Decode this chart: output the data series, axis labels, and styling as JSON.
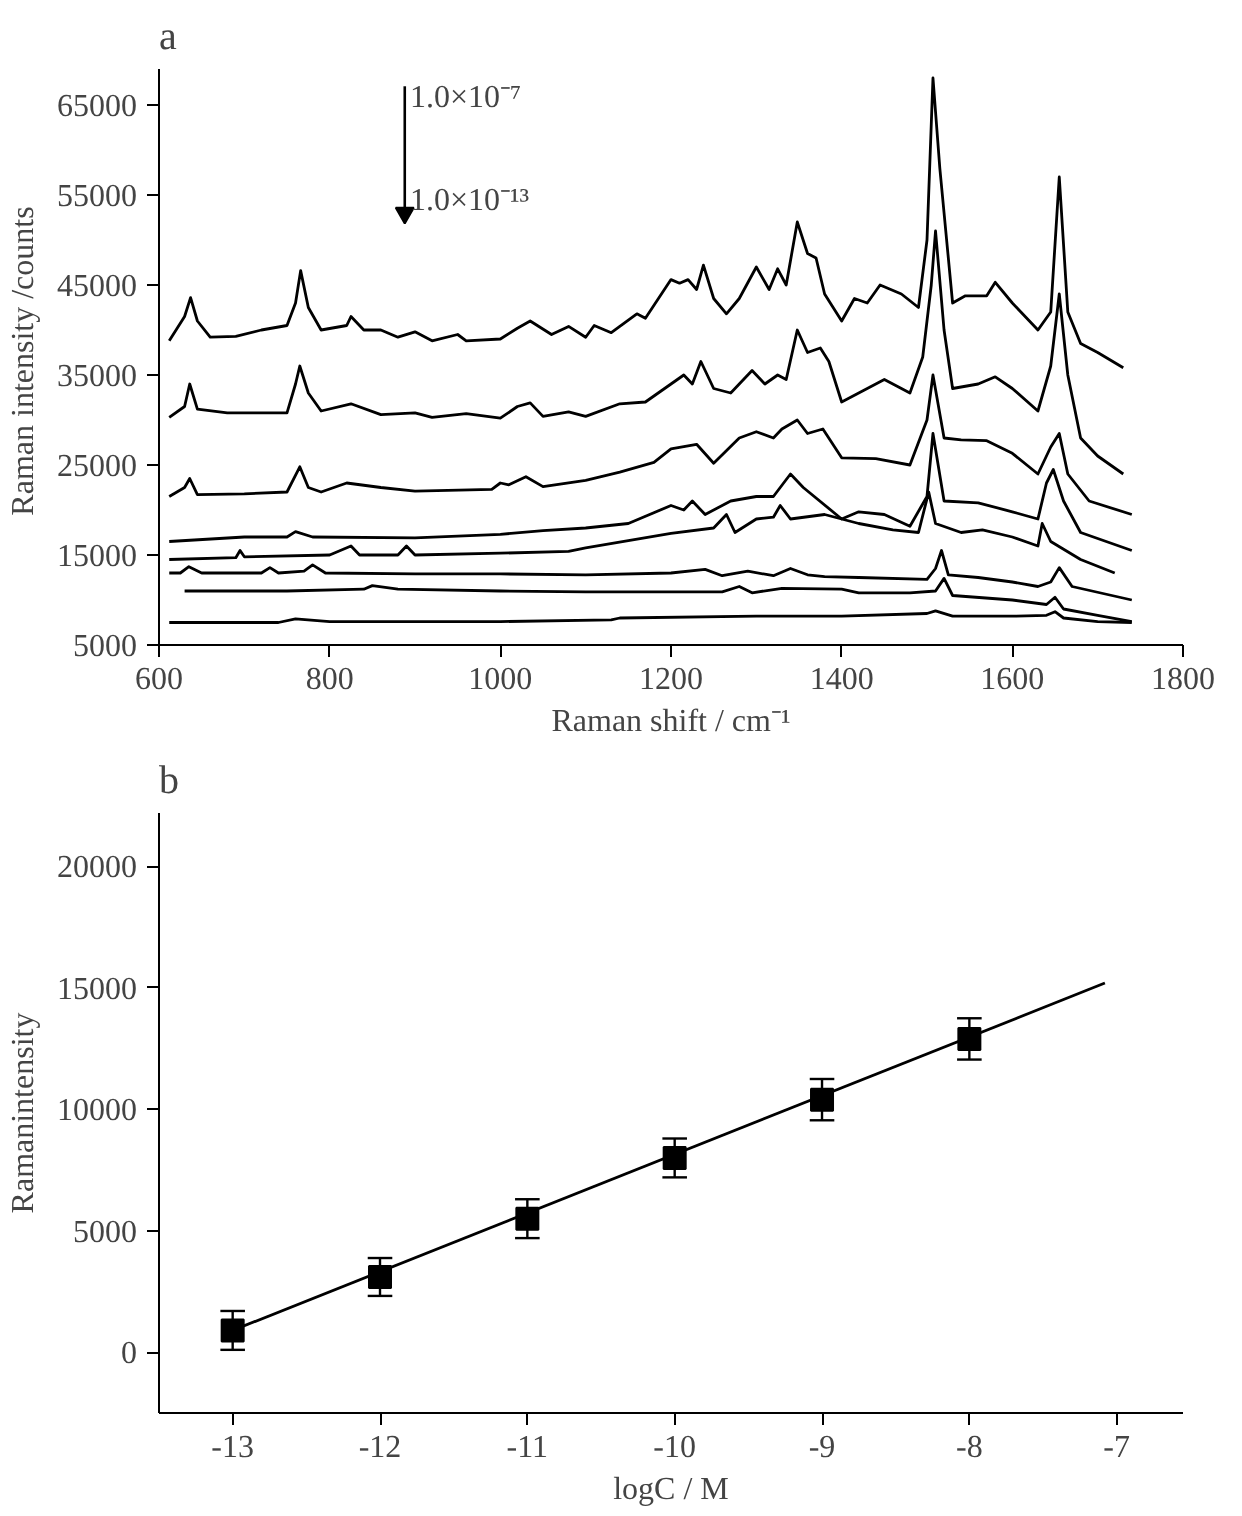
{
  "chart_data": [
    {
      "type": "line",
      "title": "a",
      "xlabel": "Raman shift / cm⁻¹",
      "ylabel": "Raman intensity  /counts",
      "xlim": [
        600,
        1800
      ],
      "xticks": [
        600,
        800,
        1000,
        1200,
        1400,
        1600,
        1800
      ],
      "ylim": [
        5000,
        69000
      ],
      "yticks": [
        5000,
        15000,
        25000,
        35000,
        45000,
        55000,
        65000
      ],
      "grid": false,
      "marker": "none",
      "line_style": "solid",
      "annotations": [
        "1.0×10⁻⁷",
        "1.0×10⁻¹³"
      ],
      "series": [
        {
          "color": "#000000",
          "x": [
            612,
            630,
            637,
            645,
            660,
            690,
            720,
            750,
            760,
            766,
            775,
            790,
            820,
            825,
            840,
            860,
            880,
            900,
            920,
            950,
            960,
            1000,
            1020,
            1035,
            1060,
            1080,
            1100,
            1110,
            1130,
            1160,
            1170,
            1200,
            1210,
            1220,
            1230,
            1238,
            1250,
            1265,
            1280,
            1300,
            1315,
            1325,
            1335,
            1348,
            1360,
            1370,
            1380,
            1400,
            1415,
            1430,
            1445,
            1470,
            1490,
            1500,
            1507,
            1515,
            1530,
            1545,
            1570,
            1580,
            1600,
            1610,
            1630,
            1645,
            1655,
            1665,
            1680,
            1700,
            1730
          ],
          "values": [
            38800,
            41500,
            43600,
            41000,
            39200,
            39300,
            40000,
            40500,
            43000,
            46600,
            42500,
            40000,
            40500,
            41500,
            40000,
            40000,
            39200,
            39800,
            38800,
            39500,
            38800,
            39000,
            40200,
            41000,
            39500,
            40400,
            39200,
            40500,
            39700,
            41800,
            41300,
            45600,
            45200,
            45600,
            44500,
            47200,
            43500,
            41800,
            43500,
            47000,
            44500,
            46800,
            45000,
            52000,
            48500,
            48000,
            44000,
            41000,
            43500,
            43000,
            45000,
            44000,
            42500,
            50000,
            68000,
            58000,
            43000,
            43800,
            43800,
            45300,
            43000,
            42000,
            40000,
            42000,
            57000,
            42000,
            38500,
            37500,
            35800
          ]
        },
        {
          "color": "#000000",
          "x": [
            612,
            630,
            636,
            645,
            680,
            750,
            760,
            765,
            775,
            790,
            825,
            860,
            900,
            920,
            960,
            1000,
            1020,
            1035,
            1050,
            1080,
            1100,
            1140,
            1170,
            1200,
            1215,
            1225,
            1235,
            1250,
            1270,
            1295,
            1310,
            1325,
            1335,
            1348,
            1360,
            1375,
            1385,
            1400,
            1420,
            1450,
            1480,
            1495,
            1505,
            1510,
            1520,
            1530,
            1560,
            1580,
            1600,
            1630,
            1645,
            1655,
            1665,
            1680,
            1700,
            1730
          ],
          "values": [
            30300,
            31500,
            34000,
            31200,
            30800,
            30800,
            34000,
            36000,
            33000,
            31000,
            31800,
            30600,
            30800,
            30300,
            30700,
            30200,
            31500,
            31900,
            30400,
            30900,
            30400,
            31800,
            32000,
            34000,
            35000,
            34000,
            36500,
            33500,
            33000,
            35500,
            34000,
            35000,
            34500,
            40000,
            37500,
            38000,
            36500,
            32000,
            33000,
            34500,
            33000,
            37000,
            45000,
            51000,
            40000,
            33500,
            34000,
            34800,
            33500,
            31000,
            36000,
            44000,
            35000,
            28000,
            26000,
            24000
          ]
        },
        {
          "color": "#000000",
          "x": [
            612,
            630,
            636,
            645,
            700,
            750,
            765,
            775,
            790,
            820,
            860,
            900,
            990,
            1000,
            1010,
            1030,
            1050,
            1100,
            1140,
            1180,
            1200,
            1230,
            1250,
            1280,
            1300,
            1320,
            1330,
            1348,
            1360,
            1378,
            1400,
            1440,
            1480,
            1500,
            1507,
            1520,
            1540,
            1570,
            1600,
            1630,
            1645,
            1655,
            1665,
            1690,
            1740
          ],
          "values": [
            21500,
            22500,
            23500,
            21700,
            21800,
            22000,
            24800,
            22500,
            22000,
            23000,
            22500,
            22100,
            22300,
            23000,
            22800,
            23700,
            22600,
            23300,
            24200,
            25300,
            26800,
            27300,
            25200,
            28000,
            28700,
            28000,
            29000,
            30000,
            28500,
            29000,
            25800,
            25700,
            25000,
            30000,
            35000,
            28000,
            27800,
            27700,
            26300,
            24000,
            27000,
            28500,
            24000,
            21000,
            19500
          ]
        },
        {
          "color": "#000000",
          "x": [
            612,
            700,
            750,
            760,
            780,
            900,
            1000,
            1050,
            1100,
            1150,
            1200,
            1215,
            1225,
            1240,
            1270,
            1300,
            1320,
            1340,
            1355,
            1400,
            1420,
            1450,
            1480,
            1500,
            1507,
            1520,
            1560,
            1600,
            1630,
            1640,
            1648,
            1660,
            1680,
            1740
          ],
          "values": [
            16500,
            17000,
            17000,
            17600,
            17000,
            16900,
            17300,
            17700,
            18000,
            18500,
            20500,
            20000,
            21000,
            19500,
            21000,
            21500,
            21500,
            24000,
            22500,
            19000,
            19800,
            19500,
            18200,
            21500,
            28500,
            21000,
            20800,
            19800,
            19000,
            23000,
            24500,
            21000,
            17500,
            15500
          ]
        },
        {
          "color": "#000000",
          "x": [
            612,
            690,
            695,
            700,
            800,
            825,
            835,
            880,
            890,
            900,
            1000,
            1080,
            1100,
            1150,
            1200,
            1250,
            1265,
            1275,
            1300,
            1320,
            1328,
            1340,
            1380,
            1420,
            1460,
            1490,
            1502,
            1510,
            1540,
            1565,
            1600,
            1630,
            1635,
            1645,
            1680,
            1720
          ],
          "values": [
            14500,
            14700,
            15500,
            14800,
            15000,
            16000,
            15000,
            15000,
            16000,
            15000,
            15200,
            15400,
            15800,
            16600,
            17400,
            18000,
            19500,
            17500,
            19000,
            19200,
            20500,
            19000,
            19500,
            18500,
            17800,
            17500,
            22000,
            18500,
            17500,
            17800,
            17000,
            16000,
            18500,
            16500,
            14500,
            13000
          ]
        },
        {
          "color": "#000000",
          "x": [
            612,
            625,
            635,
            650,
            720,
            730,
            740,
            770,
            780,
            795,
            900,
            1000,
            1100,
            1200,
            1240,
            1260,
            1290,
            1320,
            1340,
            1360,
            1380,
            1420,
            1500,
            1510,
            1517,
            1525,
            1560,
            1600,
            1630,
            1645,
            1655,
            1670,
            1740
          ],
          "values": [
            13000,
            13000,
            13700,
            13000,
            13000,
            13600,
            13000,
            13200,
            13900,
            13000,
            12900,
            12900,
            12800,
            13000,
            13400,
            12700,
            13200,
            12700,
            13500,
            12800,
            12600,
            12500,
            12300,
            13500,
            15500,
            12800,
            12500,
            12000,
            11500,
            12000,
            13600,
            11500,
            10000
          ]
        },
        {
          "color": "#000000",
          "x": [
            630,
            750,
            840,
            850,
            880,
            1000,
            1100,
            1260,
            1280,
            1295,
            1330,
            1400,
            1420,
            1480,
            1510,
            1520,
            1530,
            1600,
            1640,
            1650,
            1660,
            1700,
            1740
          ],
          "values": [
            11000,
            11000,
            11200,
            11600,
            11200,
            11000,
            10900,
            10900,
            11500,
            10800,
            11300,
            11200,
            10800,
            10800,
            11000,
            12400,
            10500,
            10000,
            9500,
            10300,
            9000,
            8300,
            7600
          ]
        },
        {
          "color": "#000000",
          "x": [
            612,
            740,
            760,
            800,
            1000,
            1130,
            1140,
            1300,
            1400,
            1500,
            1510,
            1530,
            1600,
            1640,
            1650,
            1660,
            1700,
            1740
          ],
          "values": [
            7500,
            7500,
            7900,
            7600,
            7600,
            7800,
            8000,
            8200,
            8200,
            8500,
            8800,
            8200,
            8200,
            8300,
            8700,
            8000,
            7600,
            7500
          ]
        }
      ]
    },
    {
      "type": "scatter",
      "title": "b",
      "xlabel": "logC / M",
      "ylabel": "Ramanintensity",
      "xlim": [
        -13.5,
        -6.55
      ],
      "xticks": [
        -13,
        -12,
        -11,
        -10,
        -9,
        -8,
        -7
      ],
      "ylim": [
        -2500,
        22200
      ],
      "yticks": [
        0,
        5000,
        10000,
        15000,
        20000
      ],
      "grid": false,
      "marker": "square",
      "series": [
        {
          "color": "#000000",
          "x": [
            -13,
            -12,
            -11,
            -10,
            -9,
            -8
          ],
          "values": [
            900,
            3100,
            5500,
            8000,
            10400,
            12900
          ],
          "errors": [
            800,
            780,
            800,
            800,
            850,
            850
          ]
        },
        {
          "type": "line",
          "color": "#000000",
          "x": [
            -13,
            -7.08
          ],
          "values": [
            900,
            15200
          ],
          "marker": "none",
          "line_style": "solid"
        }
      ]
    }
  ]
}
